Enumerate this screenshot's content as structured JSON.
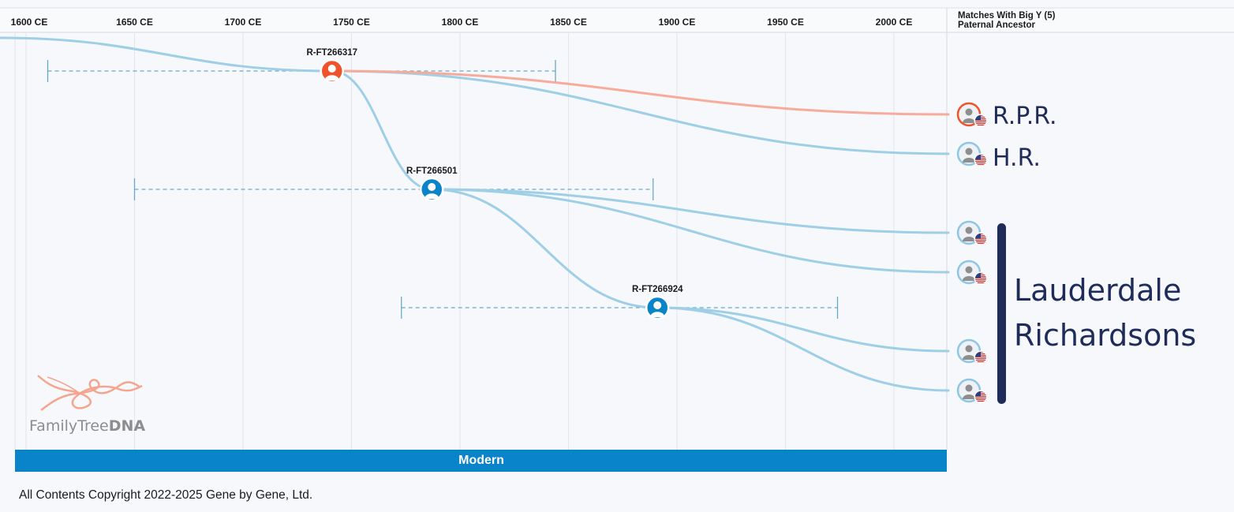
{
  "timeline": {
    "axis_ticks": [
      "1600 CE",
      "1650 CE",
      "1700 CE",
      "1750 CE",
      "1800 CE",
      "1850 CE",
      "1900 CE",
      "1950 CE",
      "2000 CE"
    ],
    "matches_header": [
      "Matches With Big Y (5)",
      "Paternal Ancestor"
    ],
    "era_label": "Modern",
    "nodes": [
      {
        "id": "R-FT266317",
        "year": 1741,
        "ci": [
          1610,
          1844
        ],
        "color": "#f0522a"
      },
      {
        "id": "R-FT266501",
        "year": 1787,
        "ci": [
          1650,
          1889
        ],
        "color": "#0a84c9"
      },
      {
        "id": "R-FT266924",
        "year": 1891,
        "ci": [
          1773,
          1974
        ],
        "color": "#0a84c9"
      }
    ],
    "matches": [
      {
        "label": "R.P.R.",
        "highlight": true,
        "flag": "us"
      },
      {
        "label": "H.R.",
        "highlight": false,
        "flag": "us"
      },
      {
        "label": "",
        "highlight": false,
        "flag": "us"
      },
      {
        "label": "",
        "highlight": false,
        "flag": "us"
      },
      {
        "label": "",
        "highlight": false,
        "flag": "us"
      },
      {
        "label": "",
        "highlight": false,
        "flag": "us"
      }
    ],
    "group_label": [
      "Lauderdale",
      "Richardsons"
    ],
    "colors": {
      "lineage": "#9ecfe6",
      "highlight_lineage": "#f7ab9b",
      "era_bar": "#0a84c9",
      "annotation": "#1f2c5a"
    }
  },
  "brand": {
    "text_light": "FamilyTree",
    "text_bold": "DNA"
  },
  "footer": {
    "copyright": "All Contents Copyright 2022-2025 Gene by Gene, Ltd."
  }
}
